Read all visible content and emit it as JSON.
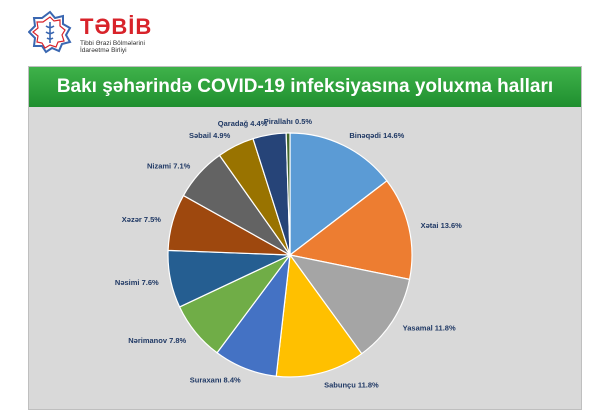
{
  "logo": {
    "name": "TƏBİB",
    "subtitle_line1": "Tibbi Ərazi Bölmələrini",
    "subtitle_line2": "İdarəetmə Birliyi"
  },
  "chart_data": {
    "type": "pie",
    "title": "Bakı şəhərində COVID-19 infeksiyasına yoluxma halları",
    "slices": [
      {
        "name": "Binəqədi",
        "value": 14.6,
        "label": "Binəqədi 14.6%",
        "color": "#5b9bd5"
      },
      {
        "name": "Xətai",
        "value": 13.6,
        "label": "Xətai 13.6%",
        "color": "#ed7d31"
      },
      {
        "name": "Yasamal",
        "value": 11.8,
        "label": "Yasamal 11.8%",
        "color": "#a5a5a5"
      },
      {
        "name": "Sabunçu",
        "value": 11.8,
        "label": "Sabunçu 11.8%",
        "color": "#ffc000"
      },
      {
        "name": "Suraxanı",
        "value": 8.4,
        "label": "Suraxanı 8.4%",
        "color": "#4472c4"
      },
      {
        "name": "Nərimanov",
        "value": 7.8,
        "label": "Nərimanov 7.8%",
        "color": "#70ad47"
      },
      {
        "name": "Nəsimi",
        "value": 7.6,
        "label": "Nəsimi 7.6%",
        "color": "#255e91"
      },
      {
        "name": "Xəzər",
        "value": 7.5,
        "label": "Xəzər 7.5%",
        "color": "#9e480e"
      },
      {
        "name": "Nizami",
        "value": 7.1,
        "label": "Nizami 7.1%",
        "color": "#636363"
      },
      {
        "name": "Səbail",
        "value": 4.9,
        "label": "Səbail 4.9%",
        "color": "#997300"
      },
      {
        "name": "Qaradağ",
        "value": 4.4,
        "label": "Qaradağ 4.4%",
        "color": "#264478"
      },
      {
        "name": "Pirallahı",
        "value": 0.5,
        "label": "Pirallahı 0.5%",
        "color": "#43682b"
      }
    ]
  }
}
